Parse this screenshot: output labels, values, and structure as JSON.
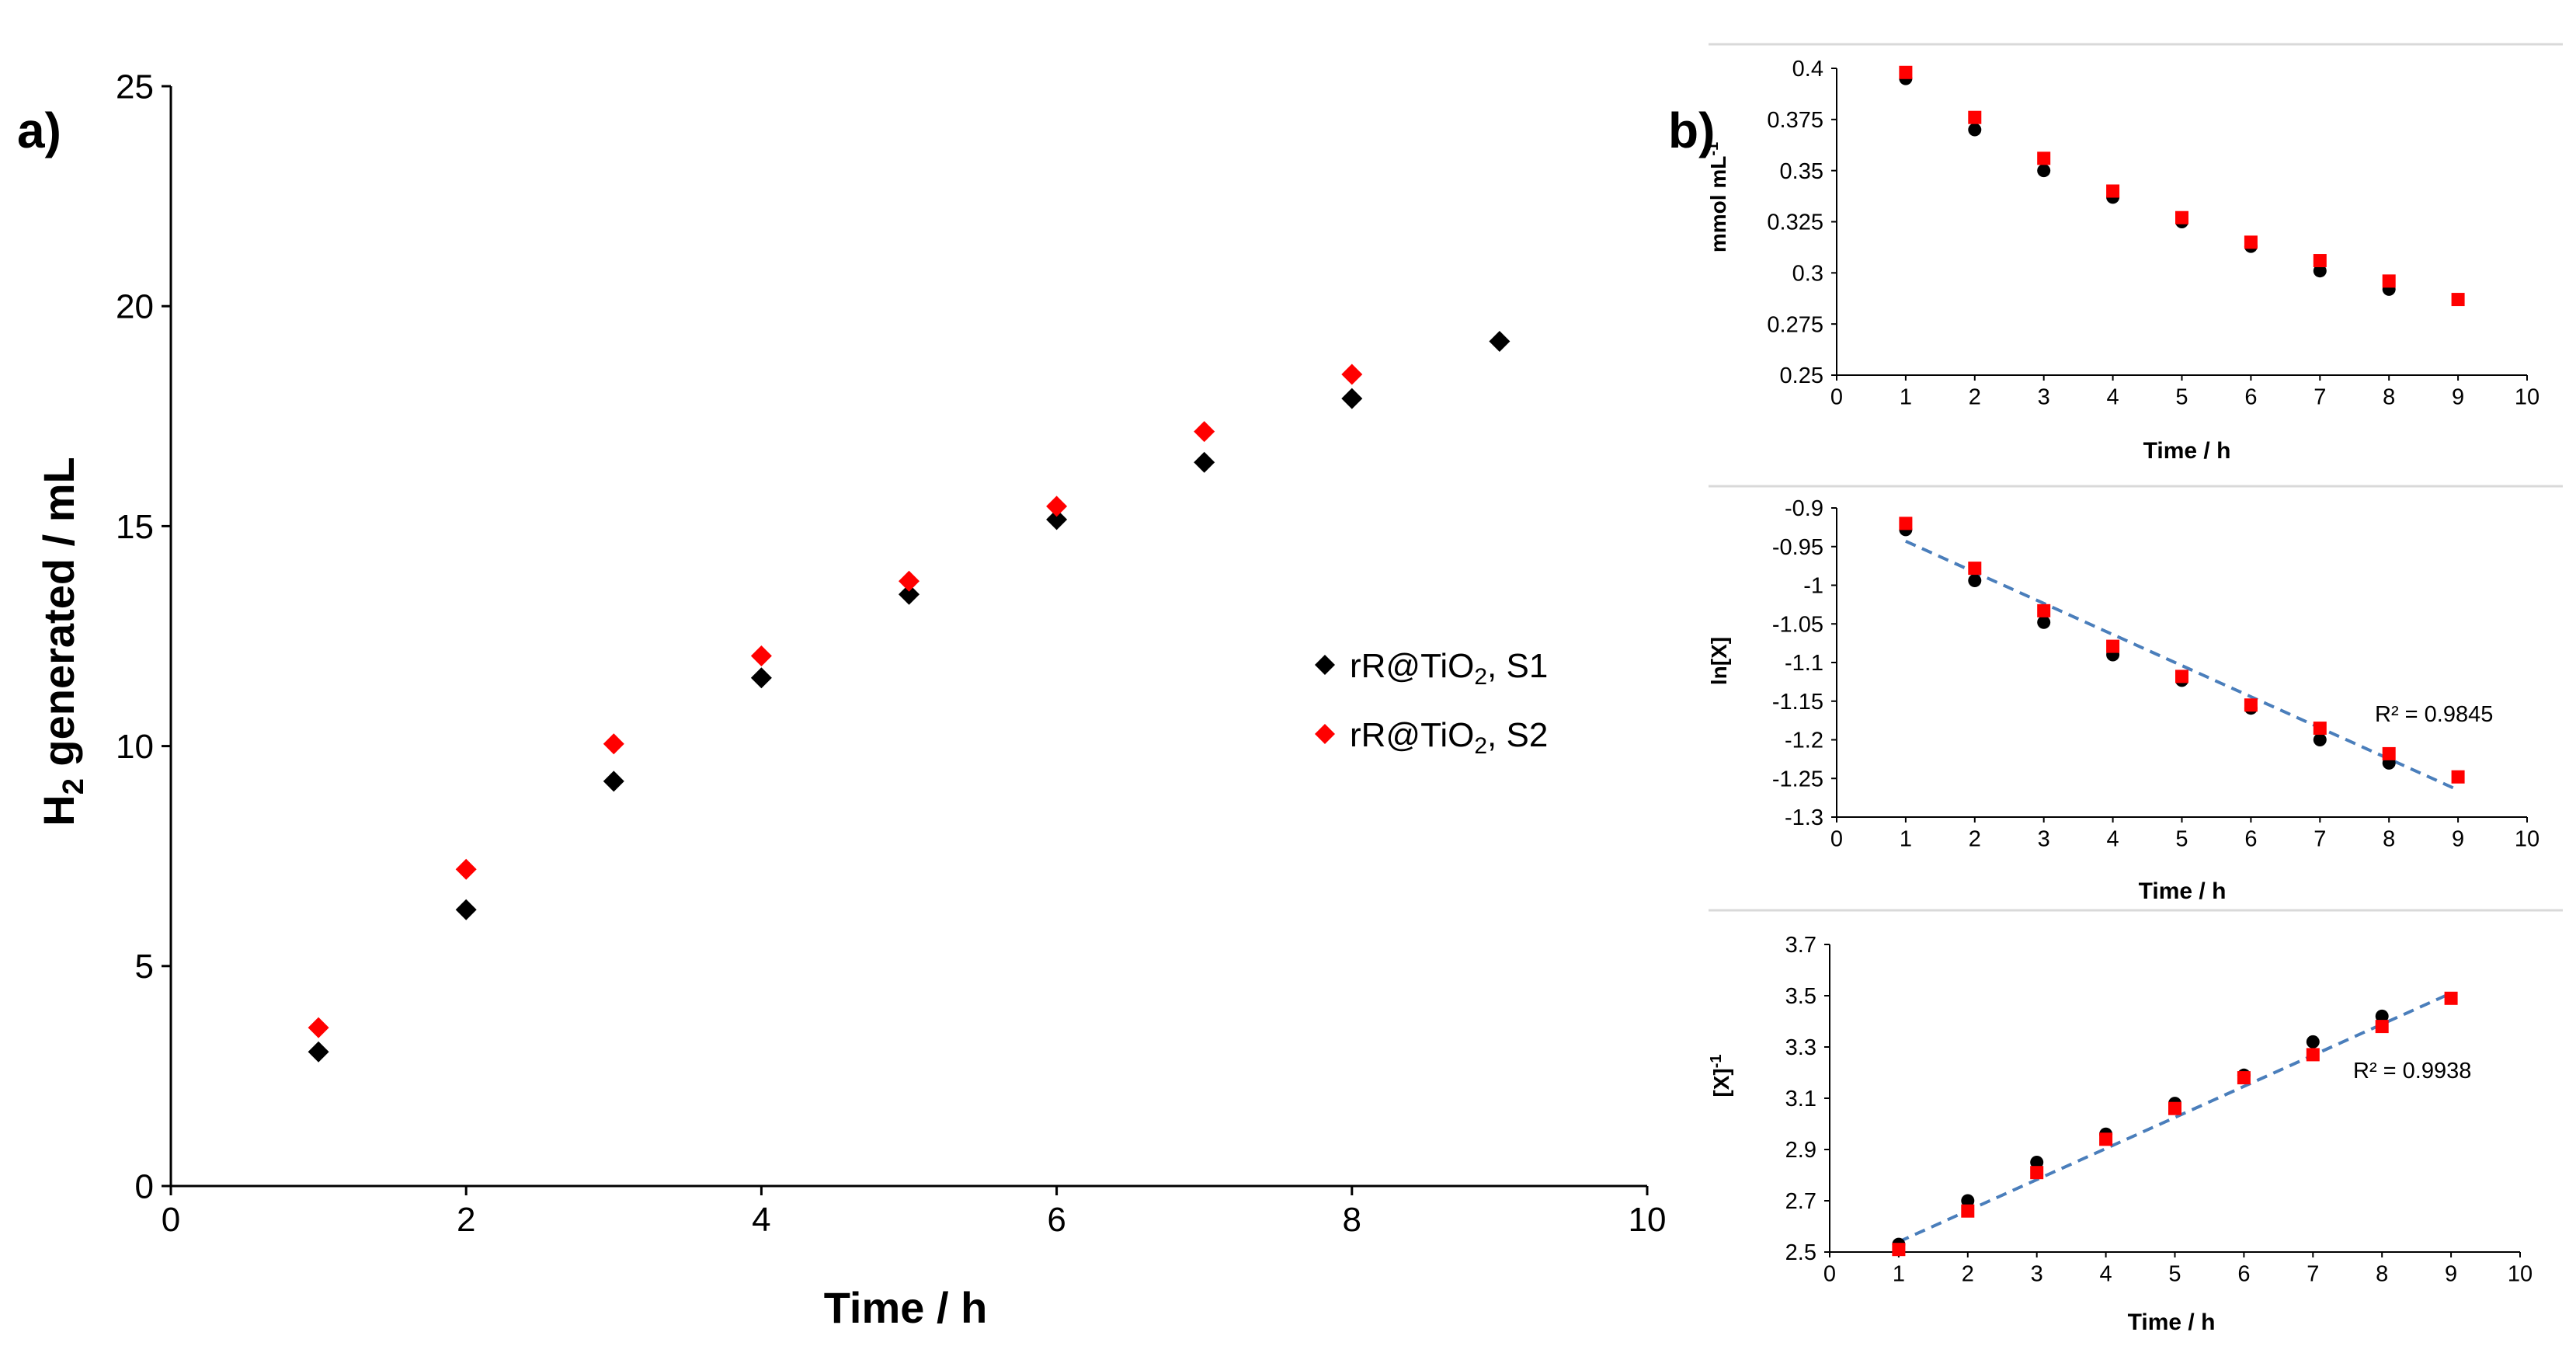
{
  "figure": {
    "panel_a_label": "a)",
    "panel_b_label": "b)"
  },
  "chart_data": [
    {
      "id": "a",
      "type": "scatter",
      "title": "",
      "xlabel": "Time / h",
      "ylabel_main": "H",
      "ylabel_sub": "2",
      "ylabel_rest": " generated / mL",
      "xlim": [
        0,
        10
      ],
      "ylim": [
        0,
        25
      ],
      "xticks": [
        "0",
        "2",
        "4",
        "6",
        "8",
        "10"
      ],
      "yticks": [
        "0",
        "5",
        "10",
        "15",
        "20",
        "25"
      ],
      "legend_position": "right-middle",
      "series": [
        {
          "name": "rR@TiO2, S1",
          "legend_main": "rR@TiO",
          "legend_sub": "2",
          "legend_rest": ", S1",
          "color": "#000000",
          "marker": "diamond",
          "x": [
            1,
            2,
            3,
            4,
            5,
            6,
            7,
            8,
            9
          ],
          "y": [
            3.05,
            6.28,
            9.2,
            11.55,
            13.45,
            15.15,
            16.45,
            17.9,
            19.2
          ]
        },
        {
          "name": "rR@TiO2, S2",
          "legend_main": "rR@TiO",
          "legend_sub": "2",
          "legend_rest": ", S2",
          "color": "#ff0000",
          "marker": "diamond",
          "x": [
            1,
            2,
            3,
            4,
            5,
            6,
            7,
            8
          ],
          "y": [
            3.6,
            7.2,
            10.05,
            12.05,
            13.75,
            15.45,
            17.15,
            18.45
          ]
        }
      ]
    },
    {
      "id": "b1",
      "type": "scatter",
      "title": "",
      "xlabel": "Time / h",
      "ylabel_main": "mmol mL",
      "ylabel_sup": "-1",
      "xlim": [
        0,
        10
      ],
      "ylim": [
        0.25,
        0.4
      ],
      "xticks": [
        "0",
        "1",
        "2",
        "3",
        "4",
        "5",
        "6",
        "7",
        "8",
        "9",
        "10"
      ],
      "yticks": [
        "0.25",
        "0.275",
        "0.3",
        "0.325",
        "0.35",
        "0.375",
        "0.4"
      ],
      "series": [
        {
          "name": "S1",
          "color": "#000000",
          "marker": "circle",
          "x": [
            1,
            2,
            3,
            4,
            5,
            6,
            7,
            8
          ],
          "y": [
            0.395,
            0.37,
            0.35,
            0.337,
            0.325,
            0.313,
            0.301,
            0.292
          ]
        },
        {
          "name": "S2",
          "color": "#ff0000",
          "marker": "square",
          "x": [
            1,
            2,
            3,
            4,
            5,
            6,
            7,
            8,
            9
          ],
          "y": [
            0.398,
            0.376,
            0.356,
            0.34,
            0.327,
            0.315,
            0.306,
            0.296,
            0.287
          ]
        }
      ]
    },
    {
      "id": "b2",
      "type": "scatter",
      "title": "",
      "xlabel": "Time / h",
      "ylabel_main": "ln[X]",
      "xlim": [
        0,
        10
      ],
      "ylim": [
        -1.3,
        -0.9
      ],
      "xticks": [
        "0",
        "1",
        "2",
        "3",
        "4",
        "5",
        "6",
        "7",
        "8",
        "9",
        "10"
      ],
      "yticks": [
        "-1.3",
        "-1.25",
        "-1.2",
        "-1.15",
        "-1.1",
        "-1.05",
        "-1",
        "-0.95",
        "-0.9"
      ],
      "annotation": "R² = 0.9845",
      "trendline": {
        "x": [
          1,
          9
        ],
        "y": [
          -0.943,
          -1.265
        ],
        "color": "#4a7ebb"
      },
      "series": [
        {
          "name": "S1",
          "color": "#000000",
          "marker": "circle",
          "x": [
            1,
            2,
            3,
            4,
            5,
            6,
            7,
            8
          ],
          "y": [
            -0.928,
            -0.994,
            -1.048,
            -1.09,
            -1.123,
            -1.159,
            -1.2,
            -1.23
          ]
        },
        {
          "name": "S2",
          "color": "#ff0000",
          "marker": "square",
          "x": [
            1,
            2,
            3,
            4,
            5,
            6,
            7,
            8,
            9
          ],
          "y": [
            -0.92,
            -0.978,
            -1.033,
            -1.079,
            -1.118,
            -1.155,
            -1.185,
            -1.218,
            -1.248
          ]
        }
      ]
    },
    {
      "id": "b3",
      "type": "scatter",
      "title": "",
      "xlabel": "Time / h",
      "ylabel_main": "[X]",
      "ylabel_sup": "-1",
      "xlim": [
        0,
        10
      ],
      "ylim": [
        2.5,
        3.7
      ],
      "xticks": [
        "0",
        "1",
        "2",
        "3",
        "4",
        "5",
        "6",
        "7",
        "8",
        "9",
        "10"
      ],
      "yticks": [
        "2.5",
        "2.7",
        "2.9",
        "3.1",
        "3.3",
        "3.5",
        "3.7"
      ],
      "annotation": "R² = 0.9938",
      "trendline": {
        "x": [
          1,
          9
        ],
        "y": [
          2.54,
          3.51
        ],
        "color": "#4a7ebb"
      },
      "series": [
        {
          "name": "S1",
          "color": "#000000",
          "marker": "circle",
          "x": [
            1,
            2,
            3,
            4,
            5,
            6,
            7,
            8
          ],
          "y": [
            2.53,
            2.7,
            2.85,
            2.96,
            3.08,
            3.19,
            3.32,
            3.42
          ]
        },
        {
          "name": "S2",
          "color": "#ff0000",
          "marker": "square",
          "x": [
            1,
            2,
            3,
            4,
            5,
            6,
            7,
            8,
            9
          ],
          "y": [
            2.51,
            2.66,
            2.81,
            2.94,
            3.06,
            3.18,
            3.27,
            3.38,
            3.49
          ]
        }
      ]
    }
  ]
}
